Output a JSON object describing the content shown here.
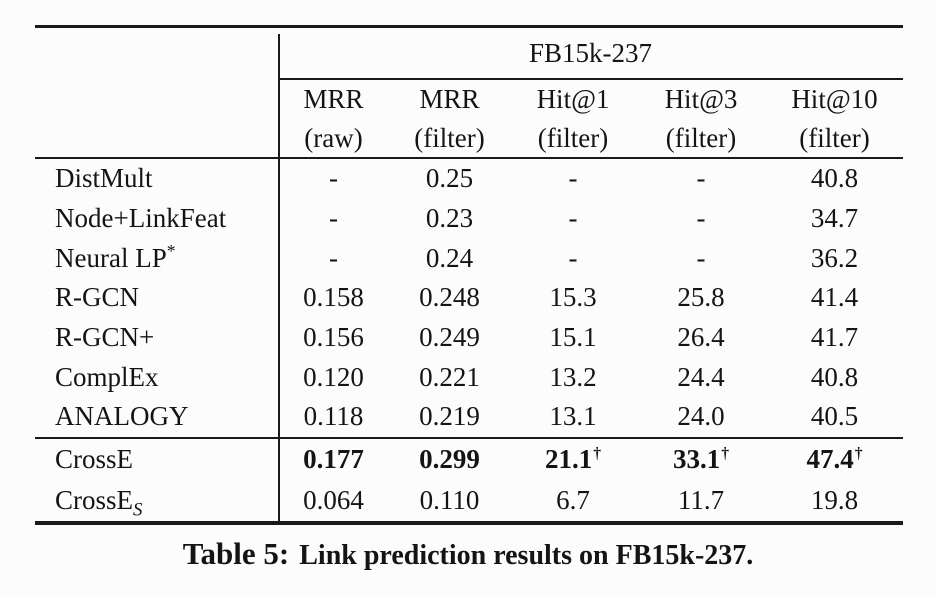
{
  "table": {
    "group_header": "FB15k-237",
    "columns": [
      {
        "line1": "MRR",
        "line2": "(raw)"
      },
      {
        "line1": "MRR",
        "line2": "(filter)"
      },
      {
        "line1": "Hit@1",
        "line2": "(filter)"
      },
      {
        "line1": "Hit@3",
        "line2": "(filter)"
      },
      {
        "line1": "Hit@10",
        "line2": "(filter)"
      }
    ],
    "rows": [
      {
        "label": "DistMult",
        "cells": [
          {
            "v": "-"
          },
          {
            "v": "0.25"
          },
          {
            "v": "-"
          },
          {
            "v": "-"
          },
          {
            "v": "40.8"
          }
        ]
      },
      {
        "label": "Node+LinkFeat",
        "cells": [
          {
            "v": "-"
          },
          {
            "v": "0.23"
          },
          {
            "v": "-"
          },
          {
            "v": "-"
          },
          {
            "v": "34.7"
          }
        ]
      },
      {
        "label": "Neural LP",
        "label_sup": "*",
        "cells": [
          {
            "v": "-"
          },
          {
            "v": "0.24"
          },
          {
            "v": "-"
          },
          {
            "v": "-"
          },
          {
            "v": "36.2"
          }
        ]
      },
      {
        "label": "R-GCN",
        "cells": [
          {
            "v": "0.158"
          },
          {
            "v": "0.248"
          },
          {
            "v": "15.3"
          },
          {
            "v": "25.8"
          },
          {
            "v": "41.4"
          }
        ]
      },
      {
        "label": "R-GCN+",
        "cells": [
          {
            "v": "0.156"
          },
          {
            "v": "0.249"
          },
          {
            "v": "15.1"
          },
          {
            "v": "26.4"
          },
          {
            "v": "41.7"
          }
        ]
      },
      {
        "label": "ComplEx",
        "cells": [
          {
            "v": "0.120"
          },
          {
            "v": "0.221"
          },
          {
            "v": "13.2"
          },
          {
            "v": "24.4"
          },
          {
            "v": "40.8"
          }
        ]
      },
      {
        "label": "ANALOGY",
        "cells": [
          {
            "v": "0.118"
          },
          {
            "v": "0.219"
          },
          {
            "v": "13.1"
          },
          {
            "v": "24.0"
          },
          {
            "v": "40.5"
          }
        ]
      },
      {
        "label": "CrossE",
        "cells": [
          {
            "v": "0.177"
          },
          {
            "v": "0.299"
          },
          {
            "v": "21.1",
            "sup": "†"
          },
          {
            "v": "33.1",
            "sup": "†"
          },
          {
            "v": "47.4",
            "sup": "†"
          }
        ]
      },
      {
        "label": "CrossE",
        "label_sub": "S",
        "cells": [
          {
            "v": "0.064"
          },
          {
            "v": "0.110"
          },
          {
            "v": "6.7"
          },
          {
            "v": "11.7"
          },
          {
            "v": "19.8"
          }
        ]
      }
    ]
  },
  "caption": {
    "prefix": "Table 5:",
    "text": "Link prediction results on FB15k-237."
  },
  "colors": {
    "text": "#141414",
    "rule": "#1a1a1a",
    "background": "#fcfcfc"
  }
}
